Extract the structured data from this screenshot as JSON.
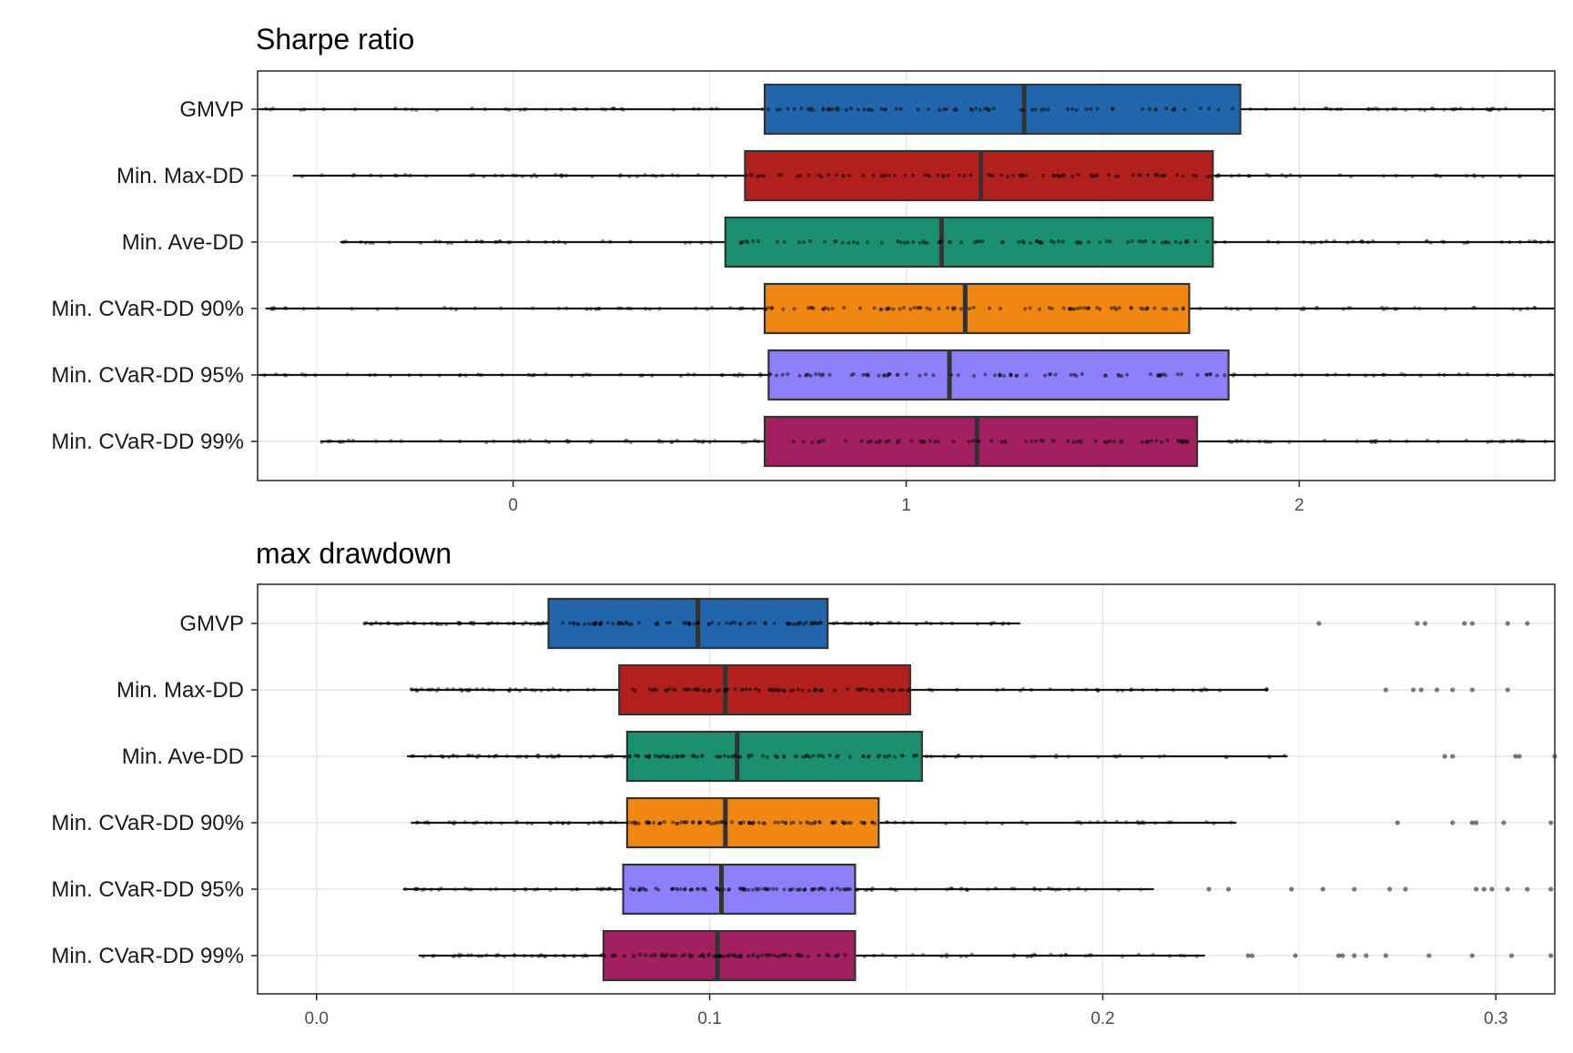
{
  "chart_data": [
    {
      "type": "boxplot",
      "title": "Sharpe ratio",
      "xlabel": "",
      "ylabel": "",
      "xlim": [
        -0.65,
        2.65
      ],
      "xticks": [
        0,
        1,
        2
      ],
      "xtick_labels": [
        "0",
        "1",
        "2"
      ],
      "grid": true,
      "categories": [
        "GMVP",
        "Min. Max-DD",
        "Min. Ave-DD",
        "Min. CVaR-DD 90%",
        "Min. CVaR-DD 95%",
        "Min. CVaR-DD 99%"
      ],
      "boxes": [
        {
          "name": "GMVP",
          "color": "#2166ac",
          "whisker_low": -0.65,
          "q1": 0.64,
          "median": 1.3,
          "q3": 1.85,
          "whisker_high": 2.65
        },
        {
          "name": "Min. Max-DD",
          "color": "#b2201e",
          "whisker_low": -0.56,
          "q1": 0.59,
          "median": 1.19,
          "q3": 1.78,
          "whisker_high": 2.65
        },
        {
          "name": "Min. Ave-DD",
          "color": "#1a9070",
          "whisker_low": -0.44,
          "q1": 0.54,
          "median": 1.09,
          "q3": 1.78,
          "whisker_high": 2.65
        },
        {
          "name": "Min. CVaR-DD 90%",
          "color": "#ef8712",
          "whisker_low": -0.63,
          "q1": 0.64,
          "median": 1.15,
          "q3": 1.72,
          "whisker_high": 2.65
        },
        {
          "name": "Min. CVaR-DD 95%",
          "color": "#8c7ff9",
          "whisker_low": -0.65,
          "q1": 0.65,
          "median": 1.11,
          "q3": 1.82,
          "whisker_high": 2.65
        },
        {
          "name": "Min. CVaR-DD 99%",
          "color": "#a2205f",
          "whisker_low": -0.49,
          "q1": 0.64,
          "median": 1.18,
          "q3": 1.74,
          "whisker_high": 2.65
        }
      ]
    },
    {
      "type": "boxplot",
      "title": "max drawdown",
      "xlabel": "",
      "ylabel": "",
      "xlim": [
        -0.015,
        0.315
      ],
      "xticks": [
        0.0,
        0.1,
        0.2,
        0.3
      ],
      "xtick_labels": [
        "0.0",
        "0.1",
        "0.2",
        "0.3"
      ],
      "grid": true,
      "categories": [
        "GMVP",
        "Min. Max-DD",
        "Min. Ave-DD",
        "Min. CVaR-DD 90%",
        "Min. CVaR-DD 95%",
        "Min. CVaR-DD 99%"
      ],
      "boxes": [
        {
          "name": "GMVP",
          "color": "#2166ac",
          "whisker_low": 0.012,
          "q1": 0.059,
          "median": 0.097,
          "q3": 0.13,
          "whisker_high": 0.179,
          "outliers": [
            0.255,
            0.28,
            0.282,
            0.292,
            0.294,
            0.303,
            0.308
          ]
        },
        {
          "name": "Min. Max-DD",
          "color": "#b2201e",
          "whisker_low": 0.024,
          "q1": 0.077,
          "median": 0.104,
          "q3": 0.151,
          "whisker_high": 0.242,
          "outliers": [
            0.272,
            0.279,
            0.281,
            0.285,
            0.289,
            0.294,
            0.303
          ]
        },
        {
          "name": "Min. Ave-DD",
          "color": "#1a9070",
          "whisker_low": 0.023,
          "q1": 0.079,
          "median": 0.107,
          "q3": 0.154,
          "whisker_high": 0.247,
          "outliers": [
            0.287,
            0.289,
            0.305,
            0.306,
            0.315
          ]
        },
        {
          "name": "Min. CVaR-DD 90%",
          "color": "#ef8712",
          "whisker_low": 0.024,
          "q1": 0.079,
          "median": 0.104,
          "q3": 0.143,
          "whisker_high": 0.234,
          "outliers": [
            0.275,
            0.289,
            0.294,
            0.295,
            0.302,
            0.314
          ]
        },
        {
          "name": "Min. CVaR-DD 95%",
          "color": "#8c7ff9",
          "whisker_low": 0.022,
          "q1": 0.078,
          "median": 0.103,
          "q3": 0.137,
          "whisker_high": 0.213,
          "outliers": [
            0.227,
            0.232,
            0.248,
            0.256,
            0.264,
            0.273,
            0.277,
            0.295,
            0.297,
            0.299,
            0.303,
            0.308,
            0.314
          ]
        },
        {
          "name": "Min. CVaR-DD 99%",
          "color": "#a2205f",
          "whisker_low": 0.026,
          "q1": 0.073,
          "median": 0.102,
          "q3": 0.137,
          "whisker_high": 0.226,
          "outliers": [
            0.237,
            0.238,
            0.249,
            0.26,
            0.261,
            0.264,
            0.267,
            0.272,
            0.283,
            0.294,
            0.304,
            0.314
          ]
        }
      ]
    }
  ]
}
